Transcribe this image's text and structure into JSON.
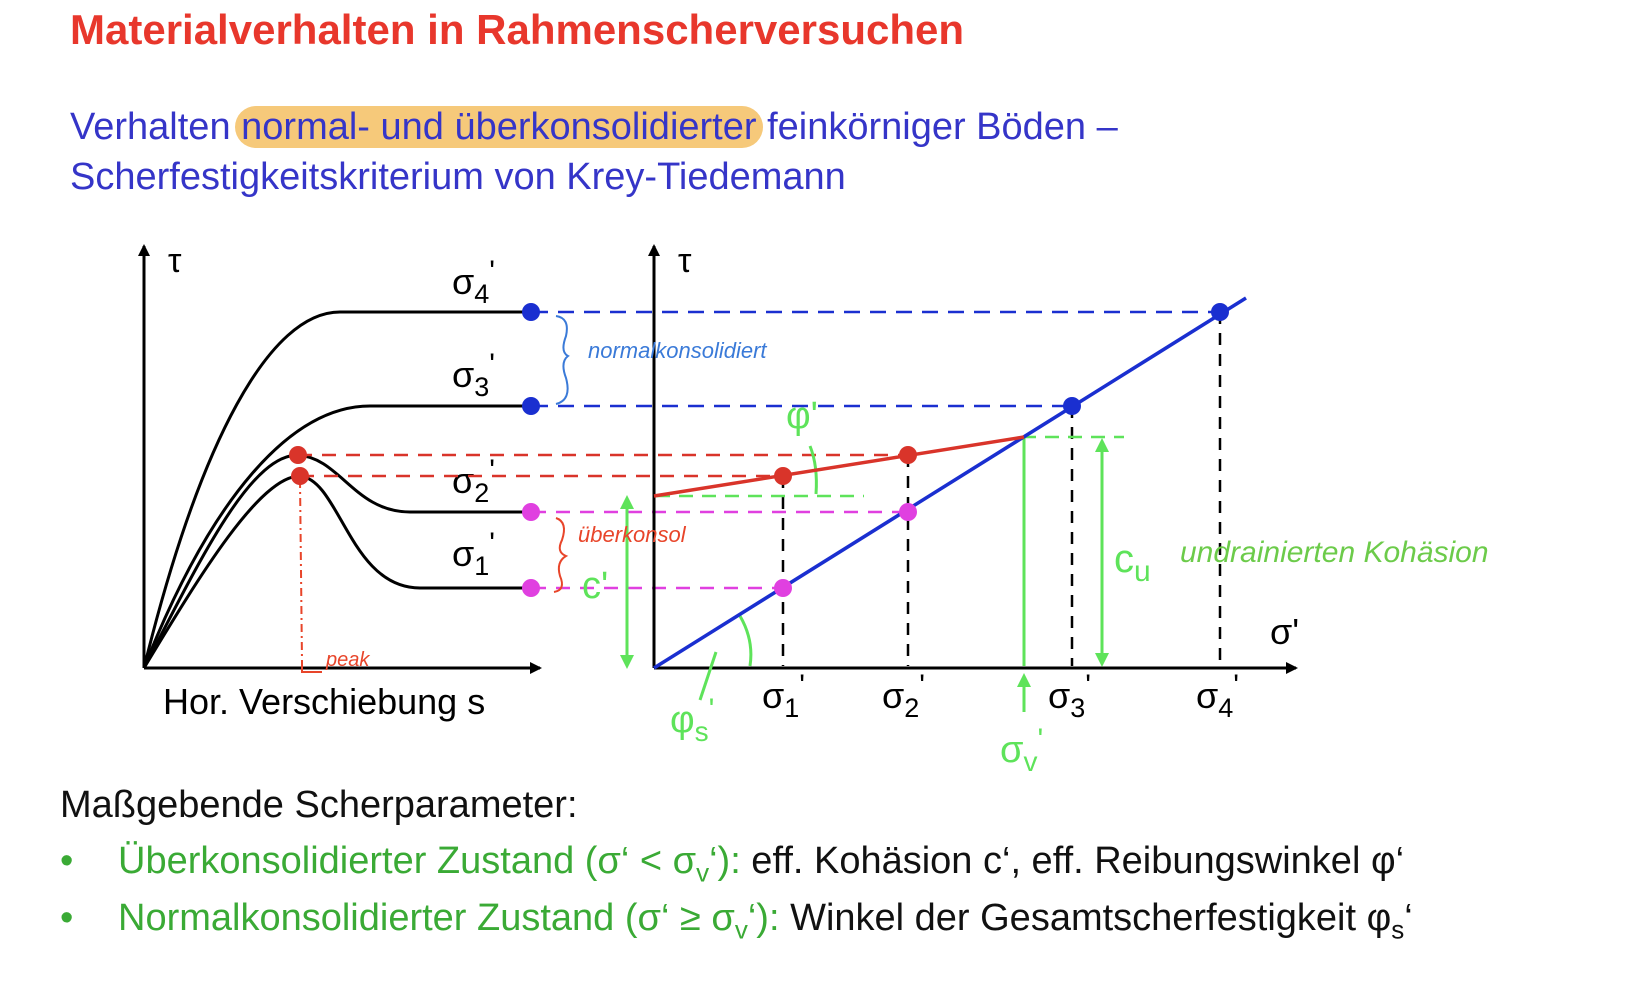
{
  "title": "Materialverhalten in Rahmenscherversuchen",
  "subtitle": {
    "line1_before": "Verhalten ",
    "line1_highlight": "normal- und überkonsolidierter",
    "line1_after": " feinkörniger Böden –",
    "line2": "Scherfestigkeitskriterium von Krey-Tiedemann"
  },
  "left_plot": {
    "y_axis_label": "τ",
    "x_axis_label": "Hor. Verschiebung s",
    "curve_labels": {
      "s4": {
        "base": "σ",
        "sub": "4",
        "prime": "'"
      },
      "s3": {
        "base": "σ",
        "sub": "3",
        "prime": "'"
      },
      "s2": {
        "base": "σ",
        "sub": "2",
        "prime": "'"
      },
      "s1": {
        "base": "σ",
        "sub": "1",
        "prime": "'"
      }
    }
  },
  "right_plot": {
    "y_axis_label": "τ",
    "x_axis_label": "σ'",
    "x_ticks": {
      "s1": {
        "base": "σ",
        "sub": "1",
        "prime": "'"
      },
      "s2": {
        "base": "σ",
        "sub": "2",
        "prime": "'"
      },
      "s3": {
        "base": "σ",
        "sub": "3",
        "prime": "'"
      },
      "s4": {
        "base": "σ",
        "sub": "4",
        "prime": "'"
      }
    },
    "labels": {
      "phi": "φ'",
      "phi_s": {
        "base": "φ",
        "sub": "s",
        "prime": "'"
      },
      "sigma_v": {
        "base": "σ",
        "sub": "v",
        "prime": "'"
      },
      "c_prime": "c'",
      "cu": {
        "base": "c",
        "sub": "u"
      }
    }
  },
  "handwritten": {
    "normalkonsolidiert": "normalkonsolidiert",
    "ueberkonsol": "überkonsol",
    "peak": "peak",
    "undrainierte_kohaesion": "undrainierten Kohäsion"
  },
  "params": {
    "heading": "Maßgebende Scherparameter:",
    "bullet": "•",
    "row1": {
      "green_pre": "Überkonsolidierter Zustand (σ‘ < σ",
      "green_sub": "v",
      "green_post": "‘):",
      "black": " eff. Kohäsion c‘, eff. Reibungswinkel φ‘"
    },
    "row2": {
      "green_pre": "Normalkonsolidierter Zustand (σ‘ ≥ σ",
      "green_sub": "v",
      "green_post": "‘):",
      "black_pre": " Winkel der Gesamtscherfestigkeit φ",
      "black_sub": "s",
      "black_post": "‘"
    }
  },
  "colors": {
    "title": "#e8372c",
    "subtitle": "#3535c8",
    "highlight": "#f6c97a",
    "blue_line": "#1a2fd0",
    "red": "#d9342a",
    "magenta": "#e040e0",
    "green": "#5ee35a",
    "text_green": "#3aaa35",
    "hand_blue": "#3a7ad8",
    "hand_red": "#e8452a",
    "hand_green": "#6ccb4a"
  }
}
